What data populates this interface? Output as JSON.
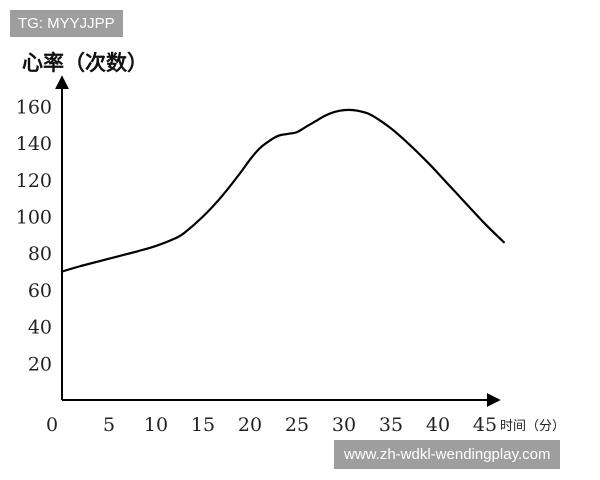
{
  "watermarks": {
    "top_left": "TG: MYYJJPP",
    "bottom_right": "www.zh-wdkl-wendingplay.com"
  },
  "chart_data": {
    "type": "line",
    "ylabel": "心率（次数）",
    "xlabel": "时间（分）",
    "x_ticks": [
      0,
      5,
      10,
      15,
      20,
      25,
      30,
      35,
      40,
      45
    ],
    "y_ticks": [
      20,
      40,
      60,
      80,
      100,
      120,
      140,
      160
    ],
    "xlim": [
      0,
      47
    ],
    "ylim": [
      0,
      185
    ],
    "grid": false,
    "legend": "none",
    "line_color": "#000000",
    "series": [
      {
        "x": [
          0,
          2,
          5,
          8,
          10,
          12,
          13,
          15,
          17,
          19,
          20,
          21,
          22,
          23,
          24,
          25,
          26,
          27,
          28,
          29,
          30,
          31,
          32,
          33,
          35,
          37,
          39,
          41,
          43,
          45,
          47
        ],
        "y": [
          70,
          73,
          77,
          81,
          84,
          88,
          91,
          100,
          111,
          124,
          131,
          137,
          141,
          144,
          145,
          146,
          149,
          152,
          155,
          157,
          158,
          158,
          157,
          155,
          148,
          139,
          129,
          118,
          107,
          96,
          86
        ]
      }
    ]
  }
}
